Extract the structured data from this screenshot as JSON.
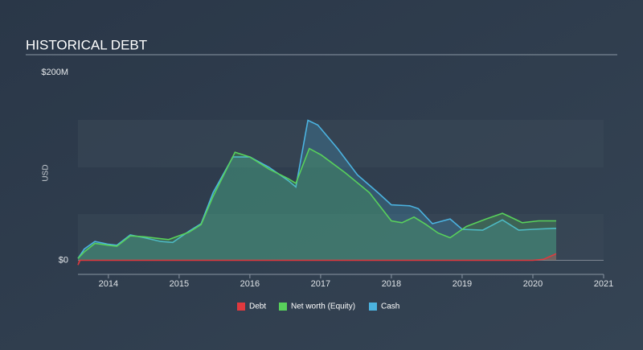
{
  "chart_data": {
    "type": "area-line",
    "title": "HISTORICAL DEBT",
    "y_label": "USD",
    "xlim": [
      2013.57,
      2021
    ],
    "xticks": [
      2014,
      2015,
      2016,
      2017,
      2018,
      2019,
      2020,
      2021
    ],
    "ylim": [
      -15,
      200
    ],
    "yticks": [
      {
        "value": 0,
        "label": "$0"
      },
      {
        "value": 200,
        "label": "$200M"
      }
    ],
    "series": [
      {
        "name": "Debt",
        "color": "#e0393e",
        "x": [
          2013.57,
          2013.6,
          2014.0,
          2015.0,
          2016.0,
          2017.0,
          2018.0,
          2019.0,
          2020.0,
          2020.15,
          2020.33
        ],
        "values": [
          -5,
          0,
          0,
          0,
          0,
          0,
          0,
          0,
          0,
          1,
          7
        ]
      },
      {
        "name": "Net worth (Equity)",
        "color": "#58d15b",
        "x": [
          2013.57,
          2013.66,
          2013.81,
          2014.0,
          2014.12,
          2014.31,
          2014.51,
          2014.85,
          2015.14,
          2015.31,
          2015.48,
          2015.79,
          2016.0,
          2016.27,
          2016.54,
          2016.65,
          2016.84,
          2017.01,
          2017.35,
          2017.69,
          2018.0,
          2018.15,
          2018.32,
          2018.49,
          2018.66,
          2018.83,
          2019.06,
          2019.34,
          2019.57,
          2019.74,
          2019.85,
          2020.08,
          2020.33
        ],
        "values": [
          2,
          9,
          18,
          16,
          15,
          26,
          25,
          22,
          30,
          38,
          68,
          115,
          110,
          97,
          87,
          82,
          119,
          112,
          93,
          72,
          42,
          40,
          46,
          38,
          29,
          24,
          36,
          44,
          50,
          44,
          40,
          42,
          42
        ]
      },
      {
        "name": "Cash",
        "color": "#4bb3e0",
        "x": [
          2013.57,
          2013.66,
          2013.81,
          2014.0,
          2014.12,
          2014.31,
          2014.51,
          2014.74,
          2014.91,
          2015.14,
          2015.31,
          2015.48,
          2015.76,
          2016.0,
          2016.27,
          2016.54,
          2016.65,
          2016.82,
          2016.96,
          2017.24,
          2017.52,
          2017.81,
          2018.0,
          2018.26,
          2018.38,
          2018.58,
          2018.83,
          2019.0,
          2019.29,
          2019.57,
          2019.8,
          2020.0,
          2020.3,
          2020.33
        ],
        "values": [
          2,
          12,
          20,
          17,
          16,
          27,
          24,
          20,
          19,
          31,
          39,
          72,
          110,
          110,
          99,
          85,
          78,
          149,
          144,
          119,
          91,
          72,
          59,
          58,
          55,
          39,
          44,
          33,
          32,
          43,
          32,
          33,
          34,
          34
        ]
      }
    ]
  }
}
